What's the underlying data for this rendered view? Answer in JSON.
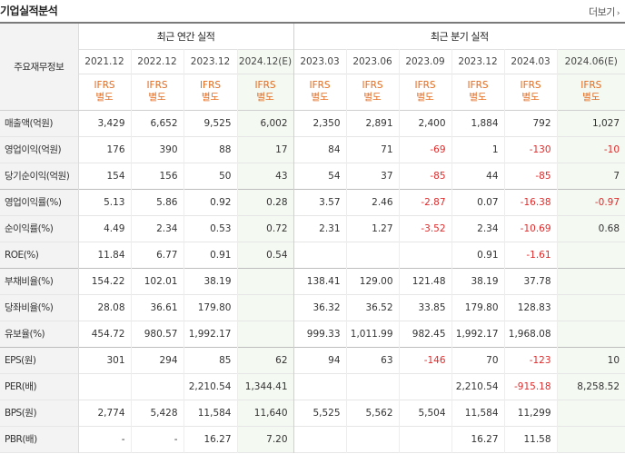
{
  "header": {
    "title": "기업실적분석",
    "more_label": "더보기"
  },
  "table": {
    "row_header_label": "주요재무정보",
    "groups": [
      {
        "label": "최근 연간 실적"
      },
      {
        "label": "최근 분기 실적"
      }
    ],
    "periods": [
      "2021.12",
      "2022.12",
      "2023.12",
      "2024.12(E)",
      "2023.03",
      "2023.06",
      "2023.09",
      "2023.12",
      "2024.03",
      "2024.06(E)"
    ],
    "ifrs_line1": "IFRS",
    "ifrs_line2": "별도",
    "rows": [
      {
        "label": "매출액(억원)",
        "values": [
          "3,429",
          "6,652",
          "9,525",
          "6,002",
          "2,350",
          "2,891",
          "2,400",
          "1,884",
          "792",
          "1,027"
        ]
      },
      {
        "label": "영업이익(억원)",
        "values": [
          "176",
          "390",
          "88",
          "17",
          "84",
          "71",
          "-69",
          "1",
          "-130",
          "-10"
        ]
      },
      {
        "label": "당기순이익(억원)",
        "values": [
          "154",
          "156",
          "50",
          "43",
          "54",
          "37",
          "-85",
          "44",
          "-85",
          "7"
        ]
      },
      {
        "label": "영업이익률(%)",
        "values": [
          "5.13",
          "5.86",
          "0.92",
          "0.28",
          "3.57",
          "2.46",
          "-2.87",
          "0.07",
          "-16.38",
          "-0.97"
        ]
      },
      {
        "label": "순이익률(%)",
        "values": [
          "4.49",
          "2.34",
          "0.53",
          "0.72",
          "2.31",
          "1.27",
          "-3.52",
          "2.34",
          "-10.69",
          "0.68"
        ]
      },
      {
        "label": "ROE(%)",
        "values": [
          "11.84",
          "6.77",
          "0.91",
          "0.54",
          "",
          "",
          "",
          "0.91",
          "-1.61",
          ""
        ]
      },
      {
        "label": "부채비율(%)",
        "values": [
          "154.22",
          "102.01",
          "38.19",
          "",
          "138.41",
          "129.00",
          "121.48",
          "38.19",
          "37.78",
          ""
        ]
      },
      {
        "label": "당좌비율(%)",
        "values": [
          "28.08",
          "36.61",
          "179.80",
          "",
          "36.32",
          "36.52",
          "33.85",
          "179.80",
          "128.83",
          ""
        ]
      },
      {
        "label": "유보율(%)",
        "values": [
          "454.72",
          "980.57",
          "1,992.17",
          "",
          "999.33",
          "1,011.99",
          "982.45",
          "1,992.17",
          "1,968.08",
          ""
        ]
      },
      {
        "label": "EPS(원)",
        "values": [
          "301",
          "294",
          "85",
          "62",
          "94",
          "63",
          "-146",
          "70",
          "-123",
          "10"
        ]
      },
      {
        "label": "PER(배)",
        "values": [
          "",
          "",
          "2,210.54",
          "1,344.41",
          "",
          "",
          "",
          "2,210.54",
          "-915.18",
          "8,258.52"
        ]
      },
      {
        "label": "BPS(원)",
        "values": [
          "2,774",
          "5,428",
          "11,584",
          "11,640",
          "5,525",
          "5,562",
          "5,504",
          "11,584",
          "11,299",
          ""
        ]
      },
      {
        "label": "PBR(배)",
        "values": [
          "-",
          "-",
          "16.27",
          "7.20",
          "",
          "",
          "",
          "16.27",
          "11.58",
          ""
        ]
      }
    ]
  }
}
